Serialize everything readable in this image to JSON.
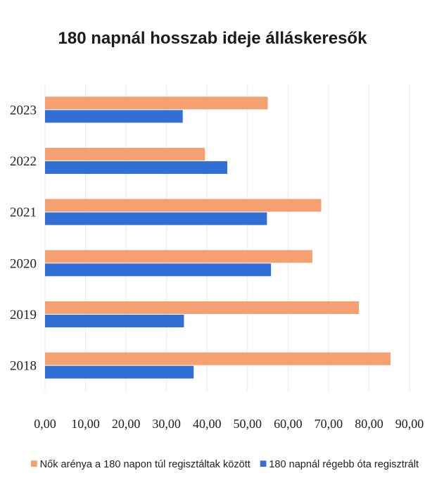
{
  "chart_data": {
    "type": "bar",
    "orientation": "horizontal",
    "title": "180 napnál hosszab ideje álláskeresők",
    "categories": [
      "2023",
      "2022",
      "2021",
      "2020",
      "2019",
      "2018"
    ],
    "series": [
      {
        "name": "Nők arénya a 180 napon túl regisztáltak között",
        "color": "#f4a070",
        "values": [
          55.0,
          39.5,
          68.2,
          66.0,
          77.5,
          85.3
        ]
      },
      {
        "name": "180 napnál régebb óta regisztrált",
        "color": "#2f6fd6",
        "values": [
          34.0,
          45.0,
          54.8,
          55.8,
          34.3,
          36.7
        ]
      }
    ],
    "xlim": [
      0,
      90
    ],
    "x_ticks": [
      "0,00",
      "10,00",
      "20,00",
      "30,00",
      "40,00",
      "50,00",
      "60,00",
      "70,00",
      "80,00",
      "90,00"
    ],
    "grid": true,
    "legend_position": "bottom"
  }
}
